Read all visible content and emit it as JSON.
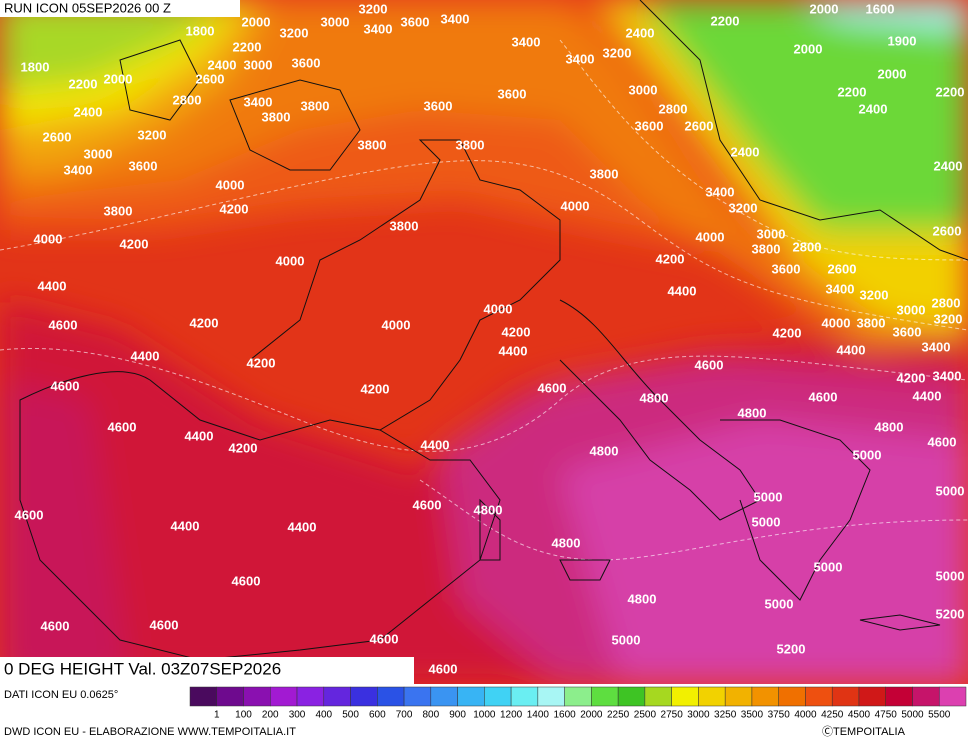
{
  "header": {
    "run": "RUN ICON 05SEP2026 00 Z"
  },
  "footer": {
    "field": "0 DEG HEIGHT Val. 03Z07SEP2026",
    "source": "DATI ICON EU 0.0625°",
    "credit": "DWD ICON EU - ELABORAZIONE WWW.TEMPOITALIA.IT",
    "copyright": "ⒸTEMPOITALIA"
  },
  "colorbar": {
    "labels": [
      "1",
      "100",
      "200",
      "300",
      "400",
      "500",
      "600",
      "700",
      "800",
      "900",
      "1000",
      "1200",
      "1400",
      "1600",
      "2000",
      "2250",
      "2500",
      "2750",
      "3000",
      "3250",
      "3500",
      "3750",
      "4000",
      "4250",
      "4500",
      "4750",
      "5000",
      "5500"
    ],
    "colors": [
      "#4a0a5e",
      "#6e0a8e",
      "#8a10b0",
      "#a21ad2",
      "#8a22e2",
      "#6426de",
      "#3a30e0",
      "#2a52e6",
      "#3a74f0",
      "#3a94f2",
      "#38b4f4",
      "#40d2f4",
      "#6aeef2",
      "#a8f6f4",
      "#8cee8c",
      "#5ede40",
      "#3ec424",
      "#a6d820",
      "#f2f000",
      "#f2d200",
      "#f2b200",
      "#f29200",
      "#f07000",
      "#ee5010",
      "#e03414",
      "#d01818",
      "#c40036",
      "#c6146a",
      "#dc40b0"
    ]
  },
  "map": {
    "contour_labels": [
      "1800",
      "2000",
      "3000",
      "3200",
      "3400",
      "3600",
      "3400",
      "2200",
      "3200",
      "1800",
      "2200",
      "2000",
      "2400",
      "3000",
      "3600",
      "2600",
      "2800",
      "3400",
      "3800",
      "3800",
      "3600",
      "3400",
      "3400",
      "3200",
      "3600",
      "2400",
      "2200",
      "2000",
      "1600",
      "1900",
      "2000",
      "2000",
      "2200",
      "2200",
      "2400",
      "3000",
      "2800",
      "3600",
      "2600",
      "2400",
      "2400",
      "2600",
      "3200",
      "3000",
      "3400",
      "3600",
      "3800",
      "3800",
      "3800",
      "4000",
      "3400",
      "3200",
      "2400",
      "3800",
      "4200",
      "4000",
      "3800",
      "4000",
      "4200",
      "4000",
      "3000",
      "3800",
      "2800",
      "2600",
      "4000",
      "4200",
      "3600",
      "2600",
      "4400",
      "4400",
      "3400",
      "3200",
      "2800",
      "3000",
      "3200",
      "4600",
      "4200",
      "4000",
      "4000",
      "4200",
      "4200",
      "4000",
      "3800",
      "3600",
      "4400",
      "4200",
      "4400",
      "4400",
      "3400",
      "4600",
      "4600",
      "4200",
      "4600",
      "4800",
      "4800",
      "4600",
      "4200",
      "3400",
      "4400",
      "4600",
      "4400",
      "4200",
      "4400",
      "4800",
      "4800",
      "5000",
      "4600",
      "5000",
      "4600",
      "4600",
      "4800",
      "5000",
      "5000",
      "4400",
      "4400",
      "4800",
      "5000",
      "5000",
      "4600",
      "4800",
      "5000",
      "5200",
      "4600",
      "4600",
      "5000",
      "4600",
      "5200",
      "4600"
    ]
  }
}
